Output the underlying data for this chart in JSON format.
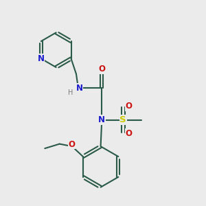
{
  "bg": "#ebebeb",
  "bc": "#2a5a48",
  "nc": "#1a1acc",
  "oc": "#cc1111",
  "sc": "#cccc00",
  "hc": "#7a7a7a",
  "lw": 1.5,
  "fs": 8.5,
  "xlim": [
    0,
    10
  ],
  "ylim": [
    0,
    10
  ],
  "figsize": [
    3.0,
    3.0
  ],
  "dpi": 100
}
